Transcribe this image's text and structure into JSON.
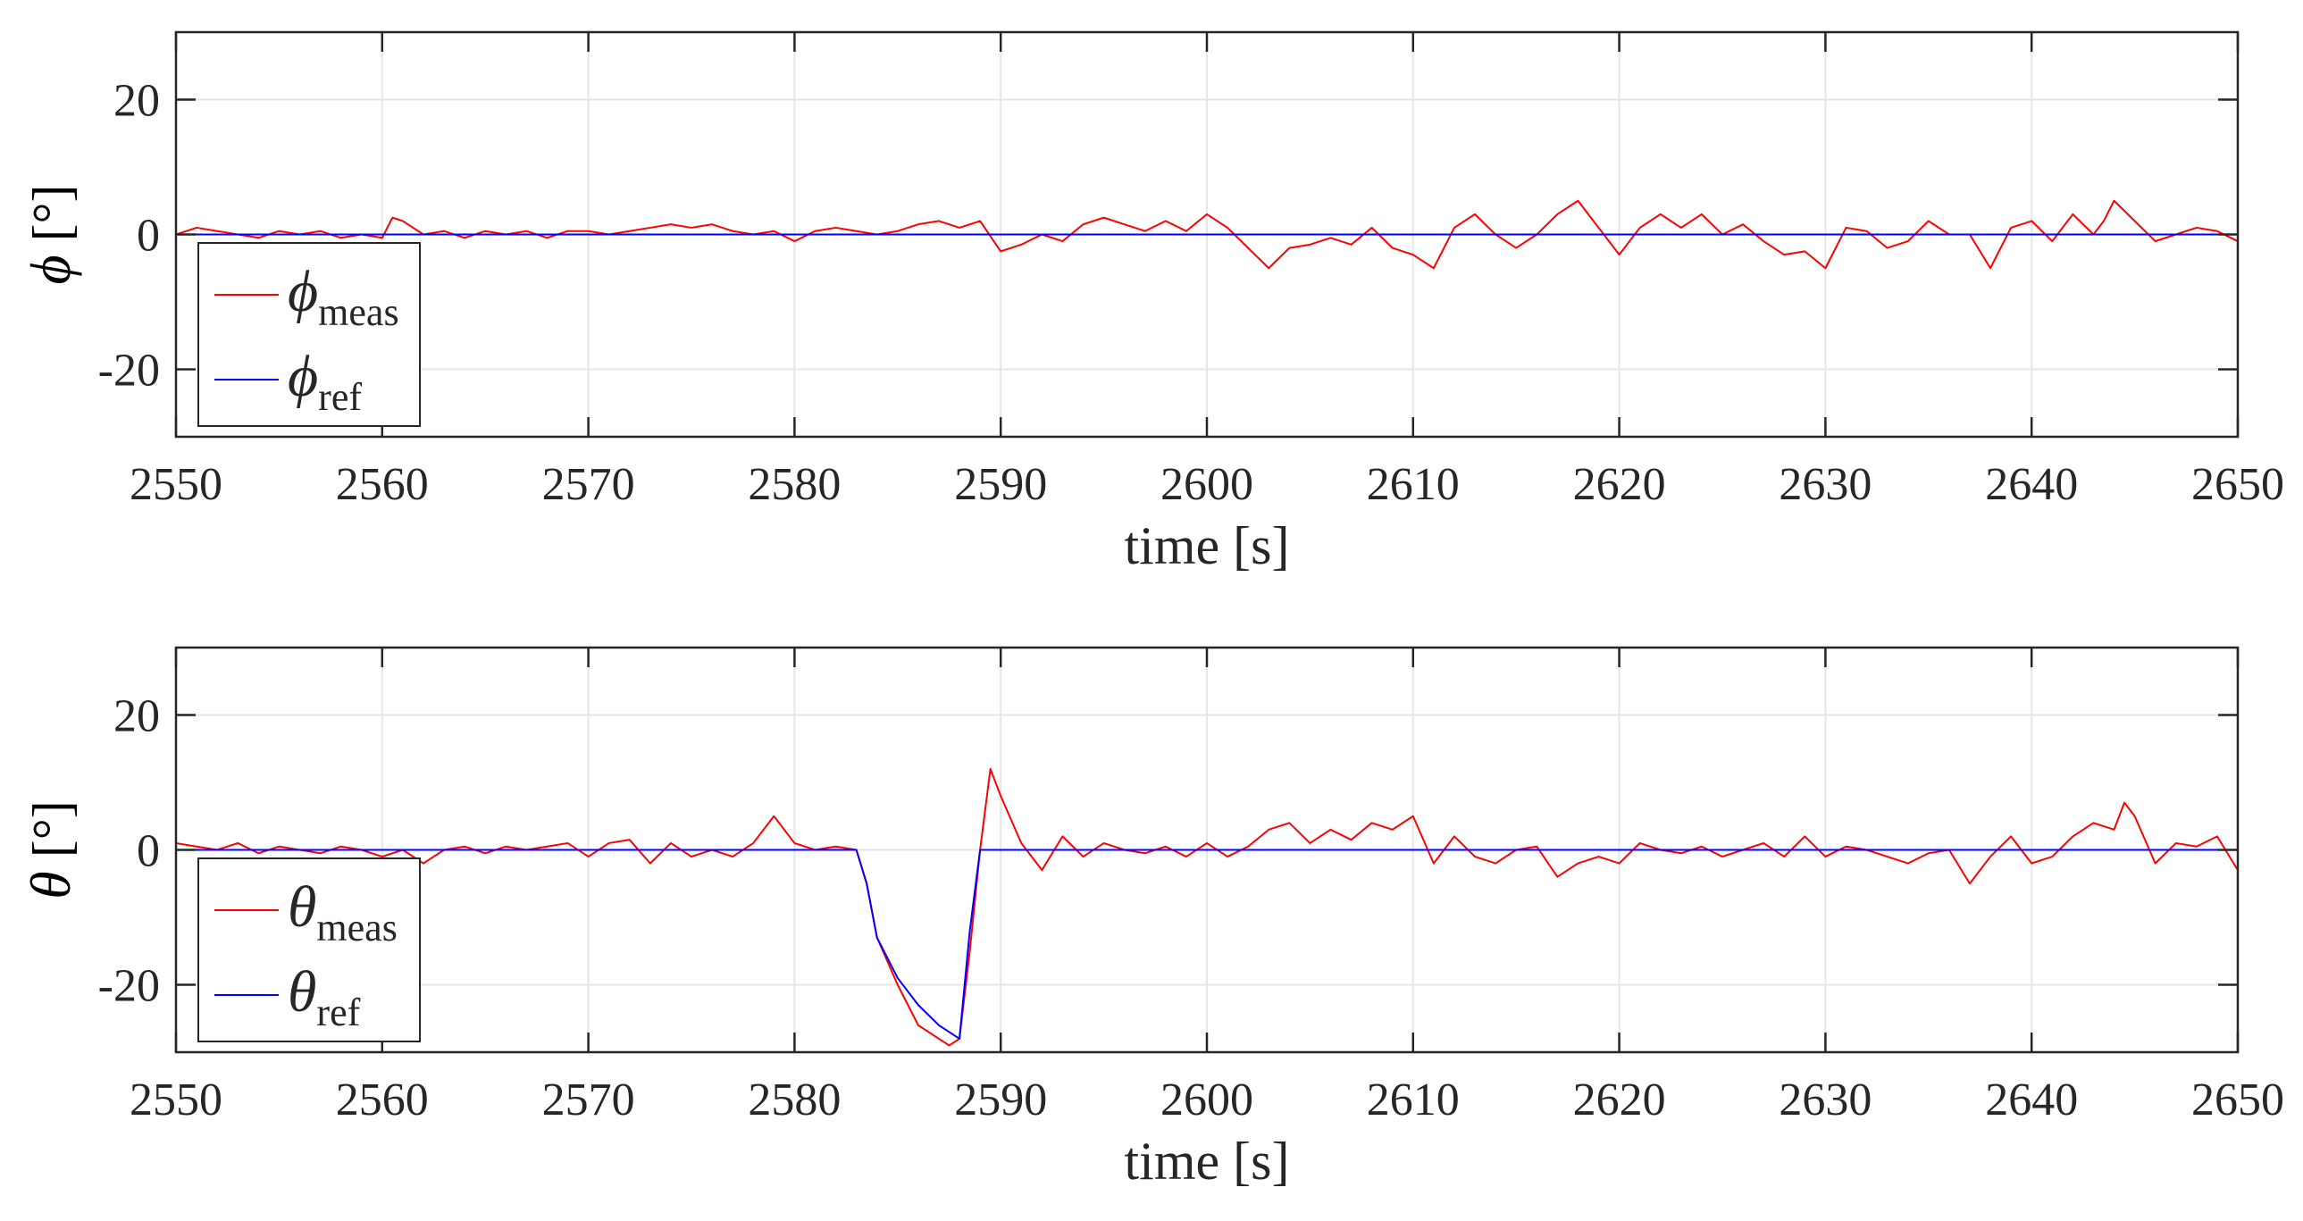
{
  "chart_data": [
    {
      "type": "line",
      "xlabel": "time [s]",
      "ylabel_symbol": "ϕ",
      "ylabel_unit": " [°]",
      "xlim": [
        2550,
        2650
      ],
      "ylim": [
        -30,
        30
      ],
      "xticks": [
        2550,
        2560,
        2570,
        2580,
        2590,
        2600,
        2610,
        2620,
        2630,
        2640,
        2650
      ],
      "yticks": [
        -20,
        0,
        20
      ],
      "xtick_labels": [
        "2550",
        "2560",
        "2570",
        "2580",
        "2590",
        "2600",
        "2610",
        "2620",
        "2630",
        "2640",
        "2650"
      ],
      "ytick_labels": [
        "-20",
        "0",
        "20"
      ],
      "grid": true,
      "legend_position": "bottom-left",
      "series": [
        {
          "name": "ϕmeas",
          "legend_symbol": "ϕ",
          "legend_sub": "meas",
          "color": "#ff0000",
          "x": [
            2550,
            2551,
            2552,
            2553,
            2554,
            2555,
            2556,
            2557,
            2558,
            2559,
            2560,
            2560.5,
            2561,
            2562,
            2563,
            2564,
            2565,
            2566,
            2567,
            2568,
            2569,
            2570,
            2571,
            2572,
            2573,
            2574,
            2575,
            2576,
            2577,
            2578,
            2579,
            2580,
            2581,
            2582,
            2583,
            2584,
            2585,
            2586,
            2587,
            2588,
            2589,
            2590,
            2591,
            2592,
            2593,
            2594,
            2595,
            2596,
            2597,
            2598,
            2599,
            2600,
            2601,
            2602,
            2603,
            2604,
            2605,
            2606,
            2607,
            2608,
            2609,
            2610,
            2611,
            2612,
            2613,
            2614,
            2615,
            2616,
            2617,
            2618,
            2619,
            2620,
            2621,
            2622,
            2623,
            2624,
            2625,
            2626,
            2627,
            2628,
            2629,
            2630,
            2631,
            2632,
            2633,
            2634,
            2635,
            2636,
            2637,
            2638,
            2639,
            2640,
            2641,
            2642,
            2643,
            2643.5,
            2644,
            2645,
            2646,
            2647,
            2648,
            2649,
            2650
          ],
          "y": [
            0,
            1,
            0.5,
            0,
            -0.5,
            0.5,
            0,
            0.5,
            -0.5,
            0,
            -0.5,
            2.5,
            2,
            0,
            0.5,
            -0.5,
            0.5,
            0,
            0.5,
            -0.5,
            0.5,
            0.5,
            0,
            0.5,
            1,
            1.5,
            1,
            1.5,
            0.5,
            0,
            0.5,
            -1,
            0.5,
            1,
            0.5,
            0,
            0.5,
            1.5,
            2,
            1,
            2,
            -2.5,
            -1.5,
            0,
            -1,
            1.5,
            2.5,
            1.5,
            0.5,
            2,
            0.5,
            3,
            1,
            -2,
            -5,
            -2,
            -1.5,
            -0.5,
            -1.5,
            1,
            -2,
            -3,
            -5,
            1,
            3,
            0,
            -2,
            0,
            3,
            5,
            1,
            -3,
            1,
            3,
            1,
            3,
            0,
            1.5,
            -1,
            -3,
            -2.5,
            -5,
            1,
            0.5,
            -2,
            -1,
            2,
            0,
            0,
            -5,
            1,
            2,
            -1,
            3,
            0,
            2,
            5,
            2,
            -1,
            0,
            1,
            0.5,
            -1
          ]
        },
        {
          "name": "ϕref",
          "legend_symbol": "ϕ",
          "legend_sub": "ref",
          "color": "#0000ff",
          "x": [
            2550,
            2650
          ],
          "y": [
            0,
            0
          ]
        }
      ]
    },
    {
      "type": "line",
      "xlabel": "time [s]",
      "ylabel_symbol": "θ",
      "ylabel_unit": " [°]",
      "xlim": [
        2550,
        2650
      ],
      "ylim": [
        -30,
        30
      ],
      "xticks": [
        2550,
        2560,
        2570,
        2580,
        2590,
        2600,
        2610,
        2620,
        2630,
        2640,
        2650
      ],
      "yticks": [
        -20,
        0,
        20
      ],
      "xtick_labels": [
        "2550",
        "2560",
        "2570",
        "2580",
        "2590",
        "2600",
        "2610",
        "2620",
        "2630",
        "2640",
        "2650"
      ],
      "ytick_labels": [
        "-20",
        "0",
        "20"
      ],
      "grid": true,
      "legend_position": "bottom-left",
      "series": [
        {
          "name": "θmeas",
          "legend_symbol": "θ",
          "legend_sub": "meas",
          "color": "#ff0000",
          "x": [
            2550,
            2551,
            2552,
            2553,
            2554,
            2555,
            2556,
            2557,
            2558,
            2559,
            2560,
            2561,
            2562,
            2563,
            2564,
            2565,
            2566,
            2567,
            2568,
            2569,
            2570,
            2571,
            2572,
            2573,
            2574,
            2575,
            2576,
            2577,
            2578,
            2579,
            2580,
            2581,
            2582,
            2583,
            2583.5,
            2584,
            2585,
            2586,
            2587,
            2587.5,
            2588,
            2588.5,
            2589,
            2589.5,
            2590,
            2591,
            2592,
            2593,
            2594,
            2595,
            2596,
            2597,
            2598,
            2599,
            2600,
            2601,
            2602,
            2603,
            2604,
            2605,
            2606,
            2607,
            2608,
            2609,
            2610,
            2611,
            2612,
            2613,
            2614,
            2615,
            2616,
            2617,
            2618,
            2619,
            2620,
            2621,
            2622,
            2623,
            2624,
            2625,
            2626,
            2627,
            2628,
            2629,
            2630,
            2631,
            2632,
            2633,
            2634,
            2635,
            2636,
            2637,
            2638,
            2639,
            2640,
            2641,
            2642,
            2643,
            2644,
            2644.5,
            2645,
            2646,
            2647,
            2648,
            2649,
            2650
          ],
          "y": [
            1,
            0.5,
            0,
            1,
            -0.5,
            0.5,
            0,
            -0.5,
            0.5,
            0,
            -1,
            0,
            -2,
            0,
            0.5,
            -0.5,
            0.5,
            0,
            0.5,
            1,
            -1,
            1,
            1.5,
            -2,
            1,
            -1,
            0,
            -1,
            1,
            5,
            1,
            0,
            0.5,
            0,
            -5,
            -13,
            -20,
            -26,
            -28,
            -29,
            -28,
            -15,
            0,
            12,
            8,
            1,
            -3,
            2,
            -1,
            1,
            0,
            -0.5,
            0.5,
            -1,
            1,
            -1,
            0.5,
            3,
            4,
            1,
            3,
            1.5,
            4,
            3,
            5,
            -2,
            2,
            -1,
            -2,
            0,
            0.5,
            -4,
            -2,
            -1,
            -2,
            1,
            0,
            -0.5,
            0.5,
            -1,
            0,
            1,
            -1,
            2,
            -1,
            0.5,
            0,
            -1,
            -2,
            -0.5,
            0,
            -5,
            -1,
            2,
            -2,
            -1,
            2,
            4,
            3,
            7,
            5,
            -2,
            1,
            0.5,
            2,
            -3
          ]
        },
        {
          "name": "θref",
          "legend_symbol": "θ",
          "legend_sub": "ref",
          "color": "#0000ff",
          "x": [
            2550,
            2583,
            2583.5,
            2584,
            2585,
            2586,
            2587,
            2588,
            2588.5,
            2589,
            2650
          ],
          "y": [
            0,
            0,
            -5,
            -13,
            -19,
            -23,
            -26,
            -28,
            -12,
            0,
            0
          ]
        }
      ]
    }
  ]
}
